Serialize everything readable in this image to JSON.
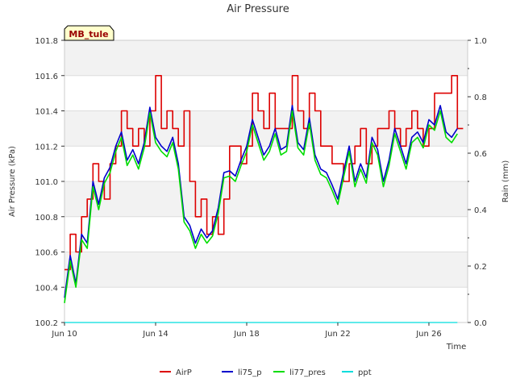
{
  "chart_data": {
    "type": "line",
    "title": "Air Pressure",
    "site_label": "MB_tule",
    "xlabel": "Time",
    "ylabel": "Air Pressure (kPa)",
    "y2label": "Rain (mm)",
    "xlim": [
      0,
      17.7
    ],
    "ylim": [
      100.2,
      101.8
    ],
    "y2lim": [
      0.0,
      1.0
    ],
    "x_ticks": [
      {
        "x": 0,
        "label": "Jun 10"
      },
      {
        "x": 4,
        "label": "Jun 14"
      },
      {
        "x": 8,
        "label": "Jun 18"
      },
      {
        "x": 12,
        "label": "Jun 22"
      },
      {
        "x": 16,
        "label": "Jun 26"
      }
    ],
    "y_ticks": [
      "100.2",
      "100.4",
      "100.6",
      "100.8",
      "101.0",
      "101.2",
      "101.4",
      "101.6",
      "101.8"
    ],
    "y2_ticks": [
      "0.0",
      "0.2",
      "0.4",
      "0.6",
      "0.8",
      "1.0"
    ],
    "x_days": [
      0.0,
      0.25,
      0.5,
      0.75,
      1.0,
      1.25,
      1.5,
      1.75,
      2.0,
      2.25,
      2.5,
      2.75,
      3.0,
      3.25,
      3.5,
      3.75,
      4.0,
      4.25,
      4.5,
      4.75,
      5.0,
      5.25,
      5.5,
      5.75,
      6.0,
      6.25,
      6.5,
      6.75,
      7.0,
      7.25,
      7.5,
      7.75,
      8.0,
      8.25,
      8.5,
      8.75,
      9.0,
      9.25,
      9.5,
      9.75,
      10.0,
      10.25,
      10.5,
      10.75,
      11.0,
      11.25,
      11.5,
      11.75,
      12.0,
      12.25,
      12.5,
      12.75,
      13.0,
      13.25,
      13.5,
      13.75,
      14.0,
      14.25,
      14.5,
      14.75,
      15.0,
      15.25,
      15.5,
      15.75,
      16.0,
      16.25,
      16.5,
      16.75,
      17.0,
      17.25
    ],
    "series": [
      {
        "name": "AirP",
        "color": "#dd0000",
        "axis": "left",
        "values": [
          100.5,
          100.7,
          100.6,
          100.8,
          100.9,
          101.1,
          101.0,
          100.9,
          101.1,
          101.2,
          101.4,
          101.3,
          101.2,
          101.3,
          101.2,
          101.4,
          101.6,
          101.3,
          101.4,
          101.3,
          101.2,
          101.4,
          101.0,
          100.8,
          100.9,
          100.7,
          100.8,
          100.7,
          100.9,
          101.2,
          101.2,
          101.1,
          101.2,
          101.5,
          101.4,
          101.3,
          101.5,
          101.3,
          101.3,
          101.3,
          101.6,
          101.4,
          101.3,
          101.5,
          101.4,
          101.2,
          101.2,
          101.1,
          101.1,
          101.0,
          101.1,
          101.2,
          101.3,
          101.1,
          101.2,
          101.3,
          101.3,
          101.4,
          101.3,
          101.2,
          101.3,
          101.4,
          101.3,
          101.2,
          101.3,
          101.5,
          101.5,
          101.5,
          101.6,
          101.3
        ]
      },
      {
        "name": "li75_p",
        "color": "#0000cc",
        "axis": "left",
        "values": [
          100.34,
          100.58,
          100.42,
          100.7,
          100.65,
          101.0,
          100.87,
          101.02,
          101.08,
          101.2,
          101.28,
          101.12,
          101.18,
          101.1,
          101.22,
          101.42,
          101.25,
          101.2,
          101.17,
          101.25,
          101.1,
          100.8,
          100.75,
          100.65,
          100.73,
          100.68,
          100.72,
          100.85,
          101.05,
          101.06,
          101.03,
          101.12,
          101.2,
          101.35,
          101.25,
          101.15,
          101.2,
          101.3,
          101.18,
          101.2,
          101.43,
          101.22,
          101.18,
          101.36,
          101.15,
          101.07,
          101.05,
          100.98,
          100.9,
          101.05,
          101.2,
          101.0,
          101.1,
          101.02,
          101.25,
          101.18,
          101.0,
          101.12,
          101.3,
          101.2,
          101.1,
          101.25,
          101.28,
          101.22,
          101.35,
          101.32,
          101.43,
          101.28,
          101.25,
          101.3
        ]
      },
      {
        "name": "li77_pres",
        "color": "#00dd00",
        "axis": "left",
        "values": [
          100.31,
          100.55,
          100.4,
          100.67,
          100.62,
          100.97,
          100.84,
          100.99,
          101.05,
          101.17,
          101.25,
          101.09,
          101.15,
          101.07,
          101.19,
          101.39,
          101.22,
          101.17,
          101.14,
          101.22,
          101.07,
          100.77,
          100.72,
          100.62,
          100.7,
          100.65,
          100.69,
          100.82,
          101.02,
          101.03,
          101.0,
          101.09,
          101.17,
          101.32,
          101.22,
          101.12,
          101.17,
          101.27,
          101.15,
          101.17,
          101.4,
          101.19,
          101.15,
          101.33,
          101.12,
          101.04,
          101.02,
          100.95,
          100.87,
          101.02,
          101.17,
          100.97,
          101.07,
          100.99,
          101.22,
          101.15,
          100.97,
          101.09,
          101.27,
          101.17,
          101.07,
          101.22,
          101.25,
          101.19,
          101.32,
          101.29,
          101.4,
          101.25,
          101.22,
          101.27
        ]
      },
      {
        "name": "ppt",
        "color": "#00dddd",
        "axis": "right",
        "values": [
          0,
          0,
          0,
          0,
          0,
          0,
          0,
          0,
          0,
          0,
          0,
          0,
          0,
          0,
          0,
          0,
          0,
          0,
          0,
          0,
          0,
          0,
          0,
          0,
          0,
          0,
          0,
          0,
          0,
          0,
          0,
          0,
          0,
          0,
          0,
          0,
          0,
          0,
          0,
          0,
          0,
          0,
          0,
          0,
          0,
          0,
          0,
          0,
          0,
          0,
          0,
          0,
          0,
          0,
          0,
          0,
          0,
          0,
          0,
          0,
          0,
          0,
          0,
          0,
          0,
          0,
          0,
          0,
          0,
          0
        ]
      }
    ],
    "grid": true,
    "legend_position": "bottom-center"
  }
}
